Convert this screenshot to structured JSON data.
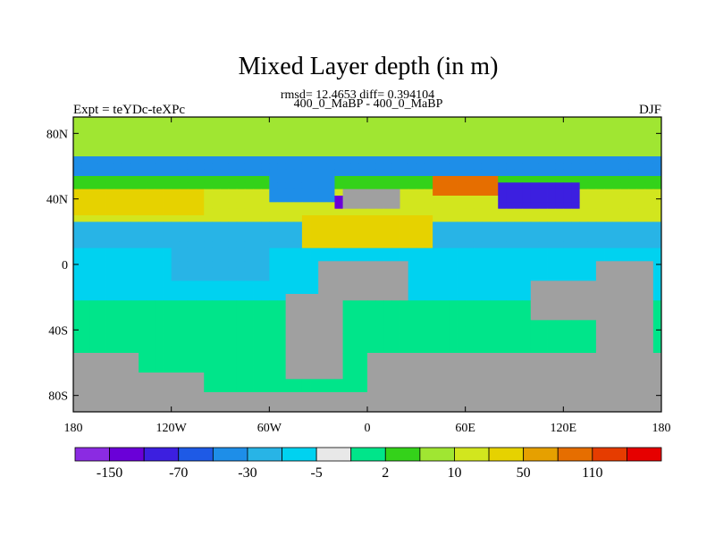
{
  "chart_data": {
    "type": "heatmap",
    "title": "Mixed Layer depth (in m)",
    "stats_text": "rmsd= 12.4653 diff= 0.394104",
    "subtitle": "400_0_MaBP - 400_0_MaBP",
    "left_label": "Expt = teYDc-teXPc",
    "right_label": "DJF",
    "x_ticks": [
      {
        "value": -180,
        "label": "180"
      },
      {
        "value": -120,
        "label": "120W"
      },
      {
        "value": -60,
        "label": "60W"
      },
      {
        "value": 0,
        "label": "0"
      },
      {
        "value": 60,
        "label": "60E"
      },
      {
        "value": 120,
        "label": "120E"
      },
      {
        "value": 180,
        "label": "180"
      }
    ],
    "y_ticks": [
      {
        "value": 80,
        "label": "80N"
      },
      {
        "value": 40,
        "label": "40N"
      },
      {
        "value": 0,
        "label": "0"
      },
      {
        "value": -40,
        "label": "40S"
      },
      {
        "value": -80,
        "label": "80S"
      }
    ],
    "xlim": [
      -180,
      180
    ],
    "ylim": [
      -90,
      90
    ],
    "colorbar": {
      "colors": [
        "#8b2be2",
        "#6a00d8",
        "#3c1fe0",
        "#1e5ae6",
        "#1e8ee8",
        "#28b4e6",
        "#00d2f0",
        "#e8e8e8",
        "#00e58a",
        "#34d21a",
        "#a0e632",
        "#d2e61e",
        "#e6d200",
        "#e6a000",
        "#e66e00",
        "#e63c00",
        "#e60000"
      ],
      "labels": [
        {
          "after_box": 1,
          "text": "-150"
        },
        {
          "after_box": 3,
          "text": "-70"
        },
        {
          "after_box": 5,
          "text": "-30"
        },
        {
          "after_box": 7,
          "text": "-5"
        },
        {
          "after_box": 9,
          "text": "2"
        },
        {
          "after_box": 11,
          "text": "10"
        },
        {
          "after_box": 13,
          "text": "50"
        },
        {
          "after_box": 15,
          "text": "110"
        }
      ]
    },
    "land_color": "#a0a0a0",
    "no_change_color": "#e8e8e8",
    "features": [
      {
        "kind": "band",
        "lat": [
          66,
          90
        ],
        "value": 8
      },
      {
        "kind": "band",
        "lat": [
          52,
          66
        ],
        "value": -35
      },
      {
        "kind": "band",
        "lat": [
          44,
          52
        ],
        "value": 4
      },
      {
        "kind": "band",
        "lat": [
          26,
          44
        ],
        "value": 15
      },
      {
        "kind": "band",
        "lat": [
          8,
          26
        ],
        "value": -25
      },
      {
        "kind": "band",
        "lat": [
          -20,
          8
        ],
        "value": -10
      },
      {
        "kind": "blob",
        "lon": [
          -180,
          -100
        ],
        "lat": [
          30,
          45
        ],
        "value": 30
      },
      {
        "kind": "blob",
        "lon": [
          -60,
          -20
        ],
        "lat": [
          40,
          52
        ],
        "value": -35
      },
      {
        "kind": "blob",
        "lon": [
          40,
          80
        ],
        "lat": [
          44,
          52
        ],
        "value": 100
      },
      {
        "kind": "blob",
        "lon": [
          80,
          130
        ],
        "lat": [
          36,
          48
        ],
        "value": -80
      },
      {
        "kind": "blob",
        "lon": [
          -40,
          40
        ],
        "lat": [
          10,
          30
        ],
        "value": 30
      },
      {
        "kind": "blob",
        "lon": [
          -20,
          -10
        ],
        "lat": [
          34,
          40
        ],
        "value": -120
      },
      {
        "kind": "blob",
        "lon": [
          -120,
          -60
        ],
        "lat": [
          -10,
          10
        ],
        "value": -30
      }
    ],
    "land": [
      {
        "lon": [
          -180,
          -140
        ],
        "lat": [
          -90,
          -55
        ]
      },
      {
        "lon": [
          -140,
          -100
        ],
        "lat": [
          -90,
          -68
        ]
      },
      {
        "lon": [
          -100,
          0
        ],
        "lat": [
          -90,
          -78
        ]
      },
      {
        "lon": [
          0,
          180
        ],
        "lat": [
          -90,
          -55
        ]
      },
      {
        "lon": [
          -50,
          -15
        ],
        "lat": [
          -70,
          -20
        ]
      },
      {
        "lon": [
          -30,
          25
        ],
        "lat": [
          -20,
          0
        ]
      },
      {
        "lon": [
          -15,
          20
        ],
        "lat": [
          34,
          44
        ]
      },
      {
        "lon": [
          100,
          140
        ],
        "lat": [
          -35,
          -10
        ]
      },
      {
        "lon": [
          140,
          175
        ],
        "lat": [
          -60,
          0
        ]
      }
    ]
  }
}
